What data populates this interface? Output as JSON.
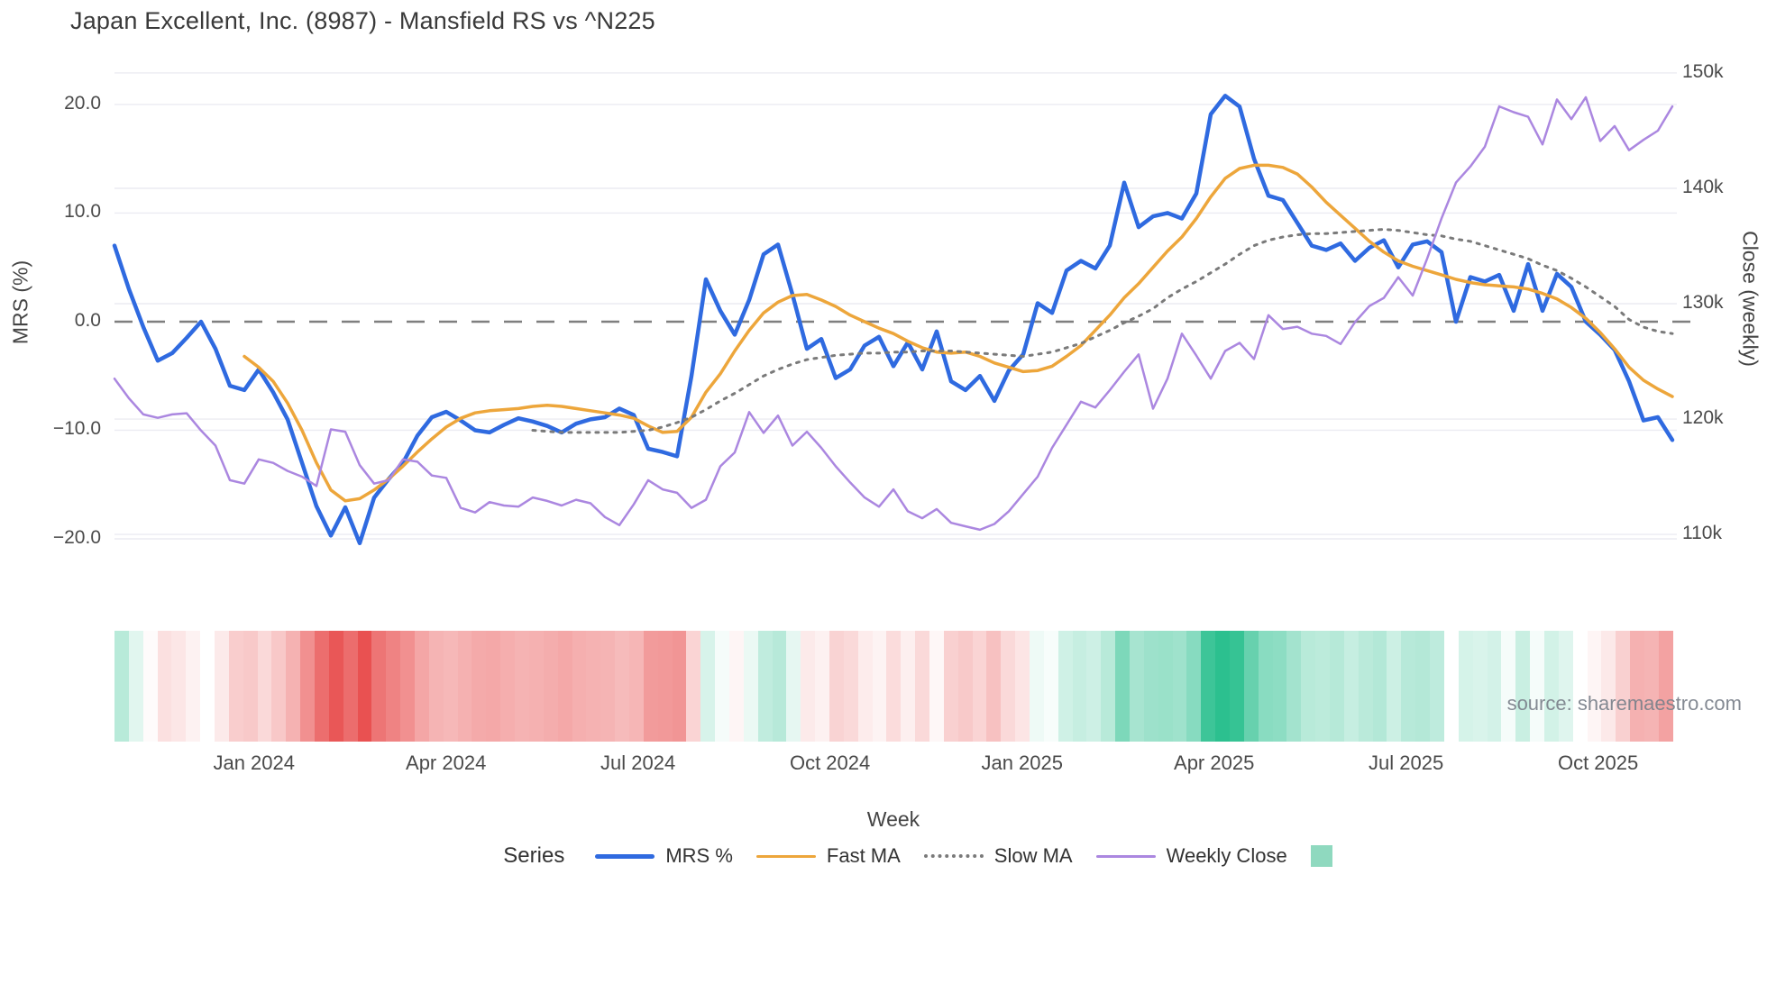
{
  "header": {
    "title": "Japan Excellent, Inc. (8987) - Mansfield RS vs ^N225"
  },
  "source_note": "source: sharemaestro.com",
  "legend": {
    "series_label": "Series",
    "items": [
      {
        "label": "MRS %",
        "swatch": "blue-line"
      },
      {
        "label": "Fast MA",
        "swatch": "orange-line"
      },
      {
        "label": "Slow MA",
        "swatch": "gray-dotted-line"
      },
      {
        "label": "Weekly Close",
        "swatch": "purple-line"
      },
      {
        "label": "",
        "swatch": "green-square"
      }
    ]
  },
  "chart_data": {
    "type": "line",
    "title": "Japan Excellent, Inc. (8987) - Mansfield RS vs ^N225",
    "xlabel": "Week",
    "n_weeks": 109,
    "x_axis": {
      "title": "Week",
      "ticks": [
        {
          "label": "Jan 2024",
          "week_index": 9.67
        },
        {
          "label": "Apr 2024",
          "week_index": 22.98
        },
        {
          "label": "Jul 2024",
          "week_index": 36.29
        },
        {
          "label": "Oct 2024",
          "week_index": 49.6
        },
        {
          "label": "Jan 2025",
          "week_index": 62.92
        },
        {
          "label": "Apr 2025",
          "week_index": 76.23
        },
        {
          "label": "Jul 2025",
          "week_index": 89.54
        },
        {
          "label": "Oct 2025",
          "week_index": 102.85
        }
      ]
    },
    "left_axis": {
      "title": "MRS (%)",
      "range": [
        -23.9,
        25.47
      ],
      "zero_dashed_line": true,
      "ticks": [
        {
          "label": "20.0",
          "value": 20
        },
        {
          "label": "10.0",
          "value": 10
        },
        {
          "label": "0.0",
          "value": 0
        },
        {
          "label": "−10.0",
          "value": -10
        },
        {
          "label": "−20.0",
          "value": -20
        }
      ]
    },
    "right_axis": {
      "title": "Close (weekly)",
      "range": [
        105.94,
        152.42
      ],
      "unit": "k",
      "ticks": [
        {
          "label": "150k",
          "value": 150
        },
        {
          "label": "140k",
          "value": 140
        },
        {
          "label": "130k",
          "value": 130
        },
        {
          "label": "120k",
          "value": 120
        },
        {
          "label": "110k",
          "value": 110
        }
      ]
    },
    "series": [
      {
        "name": "MRS %",
        "axis": "left",
        "color": "#2f6ae0",
        "width": 4.5,
        "style": "solid",
        "values": [
          7.0,
          3.0,
          -0.5,
          -3.6,
          -2.9,
          -1.5,
          0.0,
          -2.5,
          -5.9,
          -6.3,
          -4.4,
          -6.5,
          -9.0,
          -13.0,
          -17.0,
          -19.7,
          -17.1,
          -20.4,
          -16.2,
          -14.5,
          -13.0,
          -10.5,
          -8.8,
          -8.3,
          -9.1,
          -10.0,
          -10.2,
          -9.5,
          -8.9,
          -9.2,
          -9.6,
          -10.2,
          -9.4,
          -9.0,
          -8.8,
          -8.0,
          -8.6,
          -11.7,
          -12.0,
          -12.4,
          -5.0,
          3.9,
          1.0,
          -1.2,
          2.0,
          6.2,
          7.1,
          2.5,
          -2.5,
          -1.6,
          -5.2,
          -4.4,
          -2.2,
          -1.4,
          -4.1,
          -1.9,
          -4.4,
          -0.9,
          -5.5,
          -6.3,
          -5.0,
          -7.3,
          -4.5,
          -3.0,
          1.7,
          0.8,
          4.7,
          5.6,
          4.9,
          7.0,
          12.8,
          8.7,
          9.7,
          10.0,
          9.5,
          11.8,
          19.1,
          20.8,
          19.8,
          15.0,
          11.6,
          11.2,
          9.1,
          7.0,
          6.6,
          7.2,
          5.6,
          6.8,
          7.5,
          5.0,
          7.1,
          7.4,
          6.4,
          0.0,
          4.1,
          3.7,
          4.3,
          1.0,
          5.3,
          1.0,
          4.4,
          3.2,
          0.0,
          -1.2,
          -2.6,
          -5.5,
          -9.1,
          -8.8,
          -10.9
        ]
      },
      {
        "name": "Fast MA",
        "axis": "left",
        "color": "#eda63b",
        "width": 3.5,
        "style": "solid",
        "values": [
          null,
          null,
          null,
          null,
          null,
          null,
          null,
          null,
          null,
          -3.2,
          -4.2,
          -5.5,
          -7.5,
          -10.0,
          -13.0,
          -15.5,
          -16.5,
          -16.3,
          -15.5,
          -14.5,
          -13.3,
          -12.0,
          -10.8,
          -9.7,
          -8.9,
          -8.4,
          -8.2,
          -8.1,
          -8.0,
          -7.8,
          -7.7,
          -7.8,
          -8.0,
          -8.2,
          -8.4,
          -8.6,
          -8.9,
          -9.6,
          -10.2,
          -10.1,
          -8.8,
          -6.5,
          -4.8,
          -2.7,
          -0.8,
          0.8,
          1.8,
          2.4,
          2.5,
          2.0,
          1.4,
          0.6,
          0.0,
          -0.6,
          -1.1,
          -1.8,
          -2.4,
          -2.8,
          -2.9,
          -2.8,
          -3.2,
          -3.8,
          -4.2,
          -4.6,
          -4.5,
          -4.1,
          -3.2,
          -2.2,
          -0.8,
          0.6,
          2.2,
          3.5,
          5.0,
          6.5,
          7.8,
          9.5,
          11.5,
          13.2,
          14.1,
          14.4,
          14.4,
          14.2,
          13.6,
          12.4,
          11.0,
          9.8,
          8.6,
          7.4,
          6.4,
          5.6,
          5.1,
          4.7,
          4.3,
          3.9,
          3.6,
          3.4,
          3.3,
          3.2,
          3.0,
          2.6,
          2.1,
          1.3,
          0.3,
          -1.0,
          -2.5,
          -4.2,
          -5.4,
          -6.2,
          -6.9
        ]
      },
      {
        "name": "Slow MA",
        "axis": "left",
        "color": "#7a7a7a",
        "width": 3,
        "style": "dotted",
        "values": [
          null,
          null,
          null,
          null,
          null,
          null,
          null,
          null,
          null,
          null,
          null,
          null,
          null,
          null,
          null,
          null,
          null,
          null,
          null,
          null,
          null,
          null,
          null,
          null,
          null,
          null,
          null,
          null,
          null,
          -10.0,
          -10.1,
          -10.2,
          -10.2,
          -10.2,
          -10.2,
          -10.2,
          -10.1,
          -10.0,
          -9.7,
          -9.3,
          -8.8,
          -8.1,
          -7.3,
          -6.6,
          -5.8,
          -5.0,
          -4.4,
          -3.9,
          -3.5,
          -3.3,
          -3.1,
          -3.0,
          -2.9,
          -2.9,
          -2.8,
          -2.8,
          -2.7,
          -2.7,
          -2.7,
          -2.8,
          -2.9,
          -3.0,
          -3.1,
          -3.2,
          -3.0,
          -2.8,
          -2.4,
          -2.0,
          -1.4,
          -0.8,
          -0.1,
          0.5,
          1.2,
          2.2,
          3.0,
          3.7,
          4.5,
          5.3,
          6.2,
          7.0,
          7.5,
          7.8,
          8.0,
          8.1,
          8.1,
          8.2,
          8.3,
          8.4,
          8.5,
          8.4,
          8.2,
          8.0,
          7.9,
          7.6,
          7.4,
          7.0,
          6.6,
          6.2,
          5.8,
          5.2,
          4.7,
          4.0,
          3.2,
          2.3,
          1.4,
          0.2,
          -0.5,
          -0.9,
          -1.1
        ]
      },
      {
        "name": "Weekly Close",
        "axis": "right",
        "color": "#ab87e0",
        "width": 2.5,
        "style": "solid",
        "values": [
          123.5,
          121.8,
          120.4,
          120.1,
          120.4,
          120.5,
          119.0,
          117.7,
          114.7,
          114.4,
          116.5,
          116.2,
          115.5,
          115.0,
          114.2,
          119.1,
          118.9,
          116.0,
          114.4,
          114.7,
          116.5,
          116.3,
          115.1,
          114.9,
          112.3,
          111.9,
          112.8,
          112.5,
          112.4,
          113.2,
          112.9,
          112.5,
          113.0,
          112.7,
          111.5,
          110.8,
          112.6,
          114.7,
          113.9,
          113.6,
          112.3,
          113.0,
          115.9,
          117.1,
          120.6,
          118.8,
          120.3,
          117.7,
          118.9,
          117.5,
          115.9,
          114.5,
          113.2,
          112.4,
          113.9,
          112.0,
          111.4,
          112.2,
          111.0,
          110.7,
          110.4,
          110.9,
          112.0,
          113.5,
          115.0,
          117.5,
          119.5,
          121.5,
          121.0,
          122.5,
          124.1,
          125.6,
          120.9,
          123.5,
          127.4,
          125.5,
          123.5,
          125.9,
          126.6,
          125.2,
          129.0,
          127.8,
          128.0,
          127.4,
          127.2,
          126.5,
          128.4,
          129.8,
          130.5,
          132.3,
          130.7,
          133.9,
          137.4,
          140.5,
          141.9,
          143.6,
          147.1,
          146.6,
          146.2,
          143.8,
          147.7,
          146.0,
          147.9,
          144.1,
          145.4,
          143.3,
          144.2,
          145.0,
          147.1
        ]
      }
    ],
    "heatmap": {
      "source_series": "MRS %",
      "max_abs": 21,
      "positive_color": "#2abf8e",
      "negative_color": "#e84c4c",
      "legend_swatch_color": "#8fd9bf"
    },
    "colors": {
      "grid": "#ececf2",
      "zero_line": "#7f7f7f",
      "text": "#4a4a4a"
    }
  }
}
